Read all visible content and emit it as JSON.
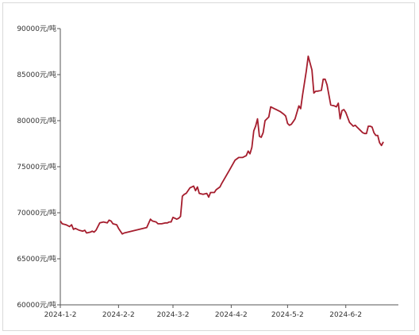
{
  "colors": {
    "line": "#a51d2d",
    "axis": "#555555"
  },
  "chart_data": {
    "type": "line",
    "title": "",
    "xlabel": "",
    "ylabel": "",
    "y_unit_suffix": "元/吨",
    "ylim": [
      60000,
      90000
    ],
    "xlim": [
      "2024-01-02",
      "2024-06-30"
    ],
    "grid": false,
    "y_ticks": [
      {
        "value": 60000,
        "label": "60000元/吨"
      },
      {
        "value": 65000,
        "label": "65000元/吨"
      },
      {
        "value": 70000,
        "label": "70000元/吨"
      },
      {
        "value": 75000,
        "label": "75000元/吨"
      },
      {
        "value": 80000,
        "label": "80000元/吨"
      },
      {
        "value": 85000,
        "label": "85000元/吨"
      },
      {
        "value": 90000,
        "label": "90000元/吨"
      }
    ],
    "x_ticks": [
      {
        "date": "2024-01-02",
        "label": "2024-1-2"
      },
      {
        "date": "2024-02-02",
        "label": "2024-2-2"
      },
      {
        "date": "2024-03-02",
        "label": "2024-3-2"
      },
      {
        "date": "2024-04-02",
        "label": "2024-4-2"
      },
      {
        "date": "2024-05-02",
        "label": "2024-5-2"
      },
      {
        "date": "2024-06-02",
        "label": "2024-6-2"
      }
    ],
    "series": [
      {
        "points": [
          [
            "2024-01-02",
            69100
          ],
          [
            "2024-01-03",
            68800
          ],
          [
            "2024-01-05",
            68700
          ],
          [
            "2024-01-07",
            68500
          ],
          [
            "2024-01-08",
            68700
          ],
          [
            "2024-01-09",
            68200
          ],
          [
            "2024-01-10",
            68300
          ],
          [
            "2024-01-12",
            68100
          ],
          [
            "2024-01-14",
            68000
          ],
          [
            "2024-01-15",
            68100
          ],
          [
            "2024-01-16",
            67800
          ],
          [
            "2024-01-18",
            67900
          ],
          [
            "2024-01-19",
            68000
          ],
          [
            "2024-01-20",
            67900
          ],
          [
            "2024-01-21",
            68100
          ],
          [
            "2024-01-23",
            68900
          ],
          [
            "2024-01-25",
            69000
          ],
          [
            "2024-01-27",
            68900
          ],
          [
            "2024-01-28",
            69200
          ],
          [
            "2024-01-29",
            69100
          ],
          [
            "2024-01-30",
            68800
          ],
          [
            "2024-02-01",
            68700
          ],
          [
            "2024-02-02",
            68300
          ],
          [
            "2024-02-04",
            67700
          ],
          [
            "2024-02-05",
            67800
          ],
          [
            "2024-02-17",
            68400
          ],
          [
            "2024-02-19",
            69300
          ],
          [
            "2024-02-20",
            69100
          ],
          [
            "2024-02-22",
            69000
          ],
          [
            "2024-02-23",
            68800
          ],
          [
            "2024-02-25",
            68800
          ],
          [
            "2024-02-27",
            68900
          ],
          [
            "2024-02-28",
            68900
          ],
          [
            "2024-02-29",
            69000
          ],
          [
            "2024-03-01",
            69000
          ],
          [
            "2024-03-02",
            69500
          ],
          [
            "2024-03-04",
            69300
          ],
          [
            "2024-03-05",
            69400
          ],
          [
            "2024-03-06",
            69600
          ],
          [
            "2024-03-07",
            71800
          ],
          [
            "2024-03-08",
            72000
          ],
          [
            "2024-03-09",
            72100
          ],
          [
            "2024-03-11",
            72700
          ],
          [
            "2024-03-13",
            72900
          ],
          [
            "2024-03-14",
            72400
          ],
          [
            "2024-03-15",
            72800
          ],
          [
            "2024-03-16",
            72100
          ],
          [
            "2024-03-18",
            72000
          ],
          [
            "2024-03-20",
            72100
          ],
          [
            "2024-03-21",
            71700
          ],
          [
            "2024-03-22",
            72200
          ],
          [
            "2024-03-24",
            72200
          ],
          [
            "2024-03-25",
            72500
          ],
          [
            "2024-03-27",
            72800
          ],
          [
            "2024-03-28",
            73200
          ],
          [
            "2024-04-01",
            74600
          ],
          [
            "2024-04-04",
            75700
          ],
          [
            "2024-04-06",
            76000
          ],
          [
            "2024-04-08",
            76000
          ],
          [
            "2024-04-10",
            76200
          ],
          [
            "2024-04-11",
            76700
          ],
          [
            "2024-04-12",
            76400
          ],
          [
            "2024-04-13",
            77100
          ],
          [
            "2024-04-14",
            78900
          ],
          [
            "2024-04-15",
            79400
          ],
          [
            "2024-04-16",
            80200
          ],
          [
            "2024-04-17",
            78300
          ],
          [
            "2024-04-18",
            78200
          ],
          [
            "2024-04-19",
            78700
          ],
          [
            "2024-04-20",
            80000
          ],
          [
            "2024-04-22",
            80400
          ],
          [
            "2024-04-23",
            81500
          ],
          [
            "2024-04-25",
            81300
          ],
          [
            "2024-04-26",
            81200
          ],
          [
            "2024-04-28",
            81000
          ],
          [
            "2024-04-30",
            80700
          ],
          [
            "2024-05-01",
            80500
          ],
          [
            "2024-05-02",
            79700
          ],
          [
            "2024-05-03",
            79500
          ],
          [
            "2024-05-04",
            79600
          ],
          [
            "2024-05-05",
            79900
          ],
          [
            "2024-05-06",
            80200
          ],
          [
            "2024-05-08",
            81600
          ],
          [
            "2024-05-09",
            81300
          ],
          [
            "2024-05-10",
            82800
          ],
          [
            "2024-05-12",
            85400
          ],
          [
            "2024-05-13",
            87000
          ],
          [
            "2024-05-15",
            85500
          ],
          [
            "2024-05-16",
            83000
          ],
          [
            "2024-05-17",
            83200
          ],
          [
            "2024-05-18",
            83200
          ],
          [
            "2024-05-20",
            83300
          ],
          [
            "2024-05-21",
            84500
          ],
          [
            "2024-05-22",
            84500
          ],
          [
            "2024-05-23",
            83900
          ],
          [
            "2024-05-25",
            81700
          ],
          [
            "2024-05-27",
            81600
          ],
          [
            "2024-05-28",
            81500
          ],
          [
            "2024-05-29",
            81900
          ],
          [
            "2024-05-30",
            80200
          ],
          [
            "2024-05-31",
            81100
          ],
          [
            "2024-06-01",
            81200
          ],
          [
            "2024-06-02",
            80900
          ],
          [
            "2024-06-04",
            79800
          ],
          [
            "2024-06-06",
            79400
          ],
          [
            "2024-06-07",
            79500
          ],
          [
            "2024-06-08",
            79300
          ],
          [
            "2024-06-10",
            78900
          ],
          [
            "2024-06-11",
            78700
          ],
          [
            "2024-06-12",
            78600
          ],
          [
            "2024-06-13",
            78600
          ],
          [
            "2024-06-14",
            79400
          ],
          [
            "2024-06-15",
            79400
          ],
          [
            "2024-06-16",
            79300
          ],
          [
            "2024-06-17",
            78700
          ],
          [
            "2024-06-18",
            78400
          ],
          [
            "2024-06-19",
            78400
          ],
          [
            "2024-06-20",
            77600
          ],
          [
            "2024-06-21",
            77300
          ],
          [
            "2024-06-22",
            77700
          ]
        ]
      }
    ]
  }
}
